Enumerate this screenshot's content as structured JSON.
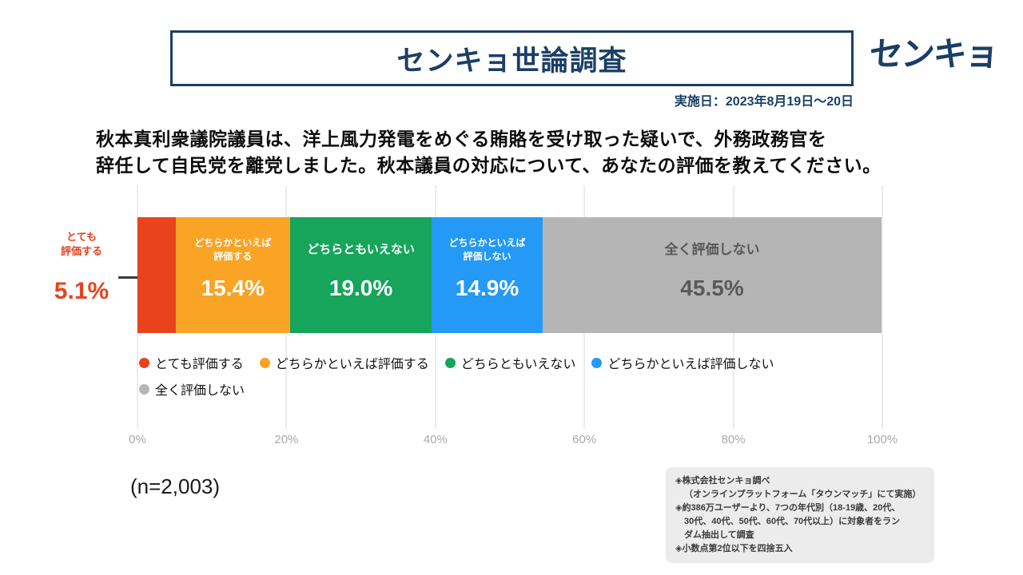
{
  "header": {
    "title": "センキョ世論調査",
    "logo": "センキョ",
    "date_label": "実施日：2023年8月19日〜20日"
  },
  "question": {
    "line1": "秋本真利衆議院議員は、洋上風力発電をめぐる賄賂を受け取った疑いで、外務政務官を",
    "line2": "辞任して自民党を離党しました。秋本議員の対応について、あなたの評価を教えてください。"
  },
  "chart_data": {
    "type": "bar",
    "subtype": "horizontal-stacked",
    "title": "秋本真利衆議院議員は、洋上風力発電をめぐる賄賂を受け取った疑いで、外務政務官を辞任して自民党を離党しました。秋本議員の対応について、あなたの評価を教えてください。",
    "categories": [
      "とても評価する",
      "どちらかといえば評価する",
      "どちらともいえない",
      "どちらかといえば評価しない",
      "全く評価しない"
    ],
    "values": [
      5.1,
      15.4,
      19.0,
      14.9,
      45.5
    ],
    "display_values": [
      "5.1%",
      "15.4%",
      "19.0%",
      "14.9%",
      "45.5%"
    ],
    "colors": [
      "#e8431d",
      "#f9a425",
      "#16a55a",
      "#2499f5",
      "#b5b5b5"
    ],
    "segment_label_lines": [
      [
        "とても",
        "評価する"
      ],
      [
        "どちらかといえば",
        "評価する"
      ],
      [
        "どちらともいえない"
      ],
      [
        "どちらかといえば",
        "評価しない"
      ],
      [
        "全く評価しない"
      ]
    ],
    "xlim": [
      0,
      100
    ],
    "tick_labels": [
      "0%",
      "20%",
      "40%",
      "60%",
      "80%",
      "100%"
    ],
    "grid": true,
    "legend_position": "below"
  },
  "sample_size": "(n=2,003)",
  "footnote": {
    "lines": [
      "◈株式会社センキョ調べ",
      "（オンラインプラットフォーム「タウンマッチ」にて実施）",
      "◈約386万ユーザーより、7つの年代別（18-19歳、20代、",
      "30代、40代、50代、60代、70代以上）に対象者をラン",
      "ダム抽出して調査",
      "◈小数点第2位以下を四捨五入"
    ]
  }
}
